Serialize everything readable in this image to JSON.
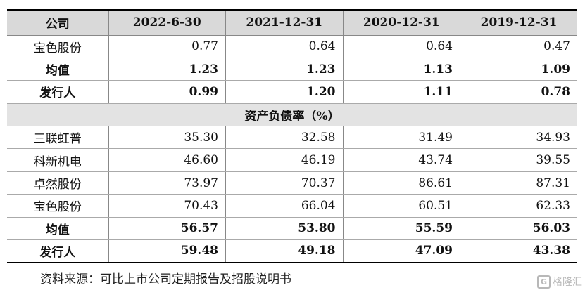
{
  "table": {
    "header": [
      "公司",
      "2022-6-30",
      "2021-12-31",
      "2020-12-31",
      "2019-12-31"
    ],
    "rows_top": [
      {
        "name": "宝色股份",
        "values": [
          "0.77",
          "0.64",
          "0.64",
          "0.47"
        ],
        "bold": false
      },
      {
        "name": "均值",
        "values": [
          "1.23",
          "1.23",
          "1.13",
          "1.09"
        ],
        "bold": true
      },
      {
        "name": "发行人",
        "values": [
          "0.99",
          "1.20",
          "1.11",
          "0.78"
        ],
        "bold": true
      }
    ],
    "section_title": "资产负债率（%）",
    "rows_bottom": [
      {
        "name": "三联虹普",
        "values": [
          "35.30",
          "32.58",
          "31.49",
          "34.93"
        ],
        "bold": false
      },
      {
        "name": "科新机电",
        "values": [
          "46.60",
          "46.19",
          "43.74",
          "39.55"
        ],
        "bold": false
      },
      {
        "name": "卓然股份",
        "values": [
          "73.97",
          "70.37",
          "86.61",
          "87.31"
        ],
        "bold": false
      },
      {
        "name": "宝色股份",
        "values": [
          "70.43",
          "66.04",
          "60.51",
          "62.33"
        ],
        "bold": false
      },
      {
        "name": "均值",
        "values": [
          "56.57",
          "53.80",
          "55.59",
          "56.03"
        ],
        "bold": true
      },
      {
        "name": "发行人",
        "values": [
          "59.48",
          "49.18",
          "47.09",
          "43.38"
        ],
        "bold": true
      }
    ]
  },
  "source_note": "资料来源：可比上市公司定期报告及招股说明书",
  "watermark": {
    "icon_name": "gelonghui-logo-icon",
    "text": "格隆汇"
  }
}
